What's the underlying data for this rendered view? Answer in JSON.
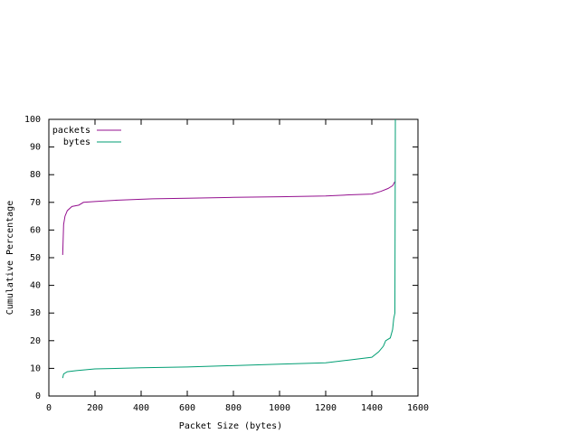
{
  "chart_data": {
    "type": "line",
    "xlabel": "Packet Size (bytes)",
    "ylabel": "Cumulative Percentage",
    "xlim": [
      0,
      1600
    ],
    "xticks": [
      0,
      200,
      400,
      600,
      800,
      1000,
      1200,
      1400,
      1600
    ],
    "ylim": [
      0,
      100
    ],
    "yticks": [
      0,
      10,
      20,
      30,
      40,
      50,
      60,
      70,
      80,
      90,
      100
    ],
    "legend": "top-left",
    "series": [
      {
        "name": "packets",
        "color": "#94108f",
        "x": [
          60,
          64,
          70,
          80,
          100,
          130,
          150,
          200,
          300,
          450,
          600,
          800,
          1000,
          1200,
          1300,
          1400,
          1440,
          1470,
          1490,
          1500
        ],
        "values": [
          51,
          62,
          65,
          67,
          68.5,
          69,
          70,
          70.3,
          70.8,
          71.3,
          71.5,
          71.8,
          72,
          72.3,
          72.7,
          73,
          74,
          75,
          76,
          77.5
        ]
      },
      {
        "name": "bytes",
        "color": "#009e73",
        "x": [
          60,
          64,
          80,
          120,
          200,
          400,
          600,
          800,
          1000,
          1200,
          1300,
          1400,
          1430,
          1450,
          1460,
          1480,
          1490,
          1495,
          1500,
          1502
        ],
        "values": [
          6.5,
          8,
          8.8,
          9.2,
          9.8,
          10.2,
          10.5,
          11,
          11.5,
          12,
          13,
          14,
          16,
          18,
          20,
          21,
          24,
          28,
          30,
          100
        ]
      }
    ]
  }
}
